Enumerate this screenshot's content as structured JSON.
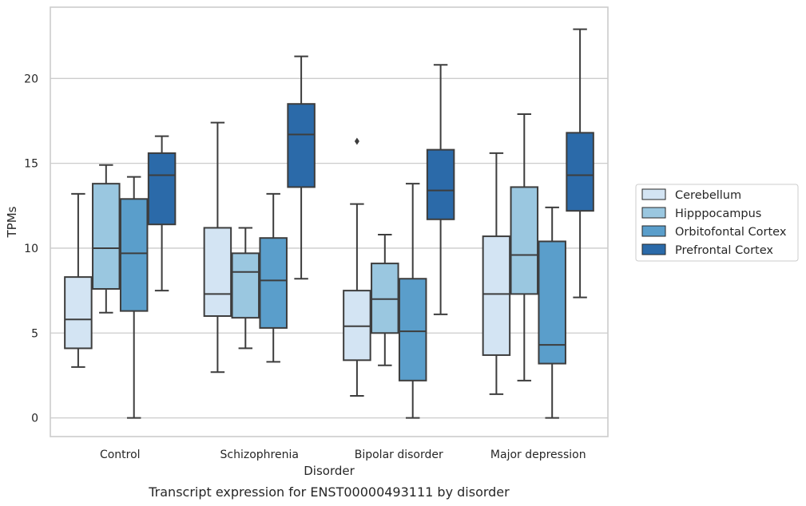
{
  "chart_data": {
    "type": "box",
    "xlabel": "Disorder",
    "ylabel": "TPMs",
    "caption": "Transcript expression for ENST00000493111 by disorder",
    "ylim": [
      -1.1,
      24.2
    ],
    "yticks": [
      0,
      5,
      10,
      15,
      20
    ],
    "grid": true,
    "legend_position": "right",
    "categories": [
      "Control",
      "Schizophrenia",
      "Bipolar disorder",
      "Major depression"
    ],
    "series": [
      {
        "name": "Cerebellum",
        "color": "#d3e4f3",
        "boxes": [
          {
            "whisker_low": 3.0,
            "q1": 4.1,
            "median": 5.8,
            "q3": 8.3,
            "whisker_high": 13.2,
            "outliers": []
          },
          {
            "whisker_low": 2.7,
            "q1": 6.0,
            "median": 7.3,
            "q3": 11.2,
            "whisker_high": 17.4,
            "outliers": []
          },
          {
            "whisker_low": 1.3,
            "q1": 3.4,
            "median": 5.4,
            "q3": 7.5,
            "whisker_high": 12.6,
            "outliers": [
              16.3
            ]
          },
          {
            "whisker_low": 1.4,
            "q1": 3.7,
            "median": 7.3,
            "q3": 10.7,
            "whisker_high": 15.6,
            "outliers": []
          }
        ]
      },
      {
        "name": "Hipppocampus",
        "color": "#9ac7e0",
        "boxes": [
          {
            "whisker_low": 6.2,
            "q1": 7.6,
            "median": 10.0,
            "q3": 13.8,
            "whisker_high": 14.9,
            "outliers": []
          },
          {
            "whisker_low": 4.1,
            "q1": 5.9,
            "median": 8.6,
            "q3": 9.7,
            "whisker_high": 11.2,
            "outliers": []
          },
          {
            "whisker_low": 3.1,
            "q1": 5.0,
            "median": 7.0,
            "q3": 9.1,
            "whisker_high": 10.8,
            "outliers": []
          },
          {
            "whisker_low": 2.2,
            "q1": 7.3,
            "median": 9.6,
            "q3": 13.6,
            "whisker_high": 17.9,
            "outliers": []
          }
        ]
      },
      {
        "name": "Orbitofontal Cortex",
        "color": "#5a9ecb",
        "boxes": [
          {
            "whisker_low": 0.0,
            "q1": 6.3,
            "median": 9.7,
            "q3": 12.9,
            "whisker_high": 14.2,
            "outliers": []
          },
          {
            "whisker_low": 3.3,
            "q1": 5.3,
            "median": 8.1,
            "q3": 10.6,
            "whisker_high": 13.2,
            "outliers": []
          },
          {
            "whisker_low": 0.0,
            "q1": 2.2,
            "median": 5.1,
            "q3": 8.2,
            "whisker_high": 13.8,
            "outliers": []
          },
          {
            "whisker_low": 0.0,
            "q1": 3.2,
            "median": 4.3,
            "q3": 10.4,
            "whisker_high": 12.4,
            "outliers": []
          }
        ]
      },
      {
        "name": "Prefrontal Cortex",
        "color": "#2b6aa9",
        "boxes": [
          {
            "whisker_low": 7.5,
            "q1": 11.4,
            "median": 14.3,
            "q3": 15.6,
            "whisker_high": 16.6,
            "outliers": []
          },
          {
            "whisker_low": 8.2,
            "q1": 13.6,
            "median": 16.7,
            "q3": 18.5,
            "whisker_high": 21.3,
            "outliers": []
          },
          {
            "whisker_low": 6.1,
            "q1": 11.7,
            "median": 13.4,
            "q3": 15.8,
            "whisker_high": 20.8,
            "outliers": []
          },
          {
            "whisker_low": 7.1,
            "q1": 12.2,
            "median": 14.3,
            "q3": 16.8,
            "whisker_high": 22.9,
            "outliers": []
          }
        ]
      }
    ]
  }
}
